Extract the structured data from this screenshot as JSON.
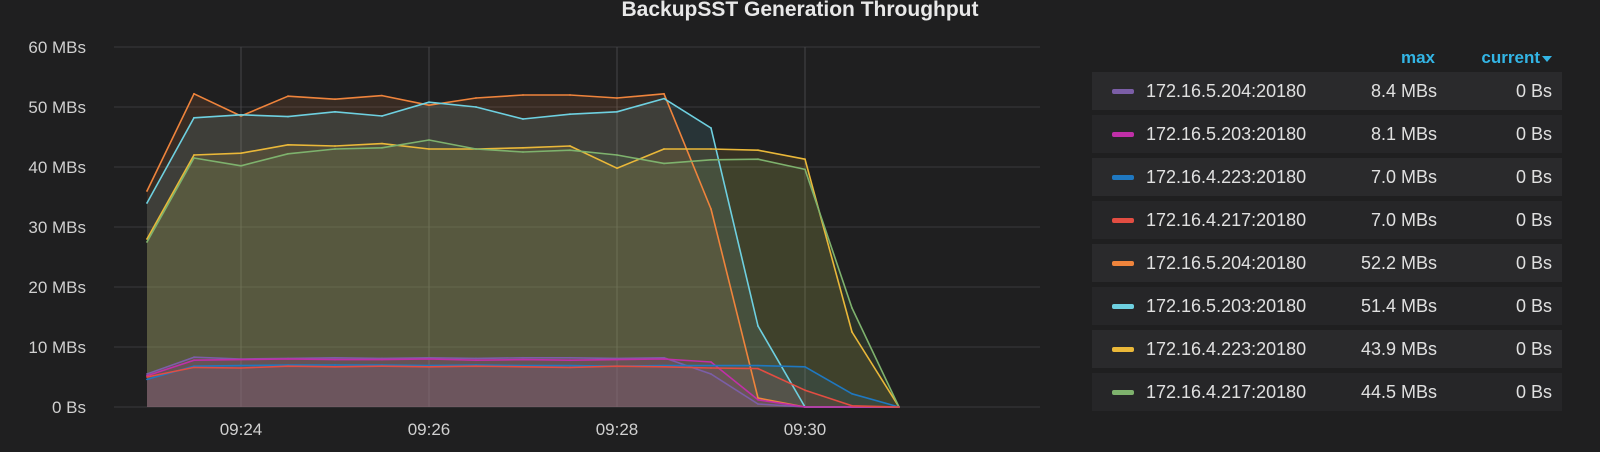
{
  "panel": {
    "title": "BackupSST Generation Throughput"
  },
  "legend": {
    "header": {
      "max_label": "max",
      "current_label": "current"
    },
    "items": [
      {
        "name": "172.16.5.204:20180",
        "max": "8.4 MBs",
        "current": "0 Bs",
        "color": "#7b5ea7"
      },
      {
        "name": "172.16.5.203:20180",
        "max": "8.1 MBs",
        "current": "0 Bs",
        "color": "#c02fa8"
      },
      {
        "name": "172.16.4.223:20180",
        "max": "7.0 MBs",
        "current": "0 Bs",
        "color": "#1f78c1"
      },
      {
        "name": "172.16.4.217:20180",
        "max": "7.0 MBs",
        "current": "0 Bs",
        "color": "#e24d42"
      },
      {
        "name": "172.16.5.204:20180",
        "max": "52.2 MBs",
        "current": "0 Bs",
        "color": "#ef843c"
      },
      {
        "name": "172.16.5.203:20180",
        "max": "51.4 MBs",
        "current": "0 Bs",
        "color": "#6ed0e0"
      },
      {
        "name": "172.16.4.223:20180",
        "max": "43.9 MBs",
        "current": "0 Bs",
        "color": "#eab839"
      },
      {
        "name": "172.16.4.217:20180",
        "max": "44.5 MBs",
        "current": "0 Bs",
        "color": "#7eb26d"
      }
    ]
  },
  "chart_data": {
    "type": "area",
    "title": "BackupSST Generation Throughput",
    "xlabel": "",
    "ylabel": "",
    "x_ticks": [
      "09:24",
      "09:26",
      "09:28",
      "09:30"
    ],
    "x_tick_minutes": [
      24,
      26,
      28,
      30
    ],
    "xlim_minutes": [
      22.5,
      32.5
    ],
    "y_ticks": [
      "0 Bs",
      "10 MBs",
      "20 MBs",
      "30 MBs",
      "40 MBs",
      "50 MBs",
      "60 MBs"
    ],
    "ylim": [
      0,
      60
    ],
    "grid": true,
    "legend_position": "right",
    "x_minutes": [
      23.0,
      23.5,
      24.0,
      24.5,
      25.0,
      25.5,
      26.0,
      26.5,
      27.0,
      27.5,
      28.0,
      28.5,
      29.0,
      29.5,
      30.0,
      30.5,
      31.0
    ],
    "series": [
      {
        "name": "172.16.5.204:20180",
        "color": "#7b5ea7",
        "values": [
          5.5,
          8.3,
          8.0,
          8.1,
          8.2,
          8.1,
          8.2,
          8.1,
          8.2,
          8.2,
          8.1,
          8.2,
          5.5,
          0.5,
          0.0,
          0.0,
          0.0
        ]
      },
      {
        "name": "172.16.5.203:20180",
        "color": "#c02fa8",
        "values": [
          5.2,
          7.8,
          7.9,
          8.0,
          7.9,
          7.9,
          8.0,
          7.8,
          7.9,
          7.8,
          7.9,
          8.0,
          7.5,
          1.2,
          0.0,
          0.0,
          0.0
        ]
      },
      {
        "name": "172.16.4.223:20180",
        "color": "#1f78c1",
        "values": [
          4.6,
          6.8,
          6.9,
          7.0,
          7.0,
          7.0,
          6.9,
          7.0,
          6.9,
          6.9,
          6.8,
          6.9,
          6.9,
          6.9,
          6.7,
          2.2,
          0.0
        ]
      },
      {
        "name": "172.16.4.217:20180",
        "color": "#e24d42",
        "values": [
          5.0,
          6.6,
          6.5,
          6.8,
          6.7,
          6.8,
          6.7,
          6.8,
          6.7,
          6.6,
          6.8,
          6.7,
          6.5,
          6.4,
          2.8,
          0.2,
          0.0
        ]
      },
      {
        "name": "172.16.5.204:20180",
        "color": "#ef843c",
        "values": [
          36.0,
          52.2,
          48.5,
          51.8,
          51.3,
          51.9,
          50.3,
          51.5,
          52.0,
          52.0,
          51.5,
          52.2,
          33.0,
          1.5,
          0.0,
          0.0,
          0.0
        ]
      },
      {
        "name": "172.16.5.203:20180",
        "color": "#6ed0e0",
        "values": [
          34.0,
          48.2,
          48.7,
          48.4,
          49.2,
          48.5,
          50.8,
          50.0,
          48.0,
          48.8,
          49.2,
          51.4,
          46.5,
          13.5,
          0.0,
          0.0,
          0.0
        ]
      },
      {
        "name": "172.16.4.223:20180",
        "color": "#eab839",
        "values": [
          28.0,
          42.0,
          42.3,
          43.7,
          43.5,
          43.9,
          43.0,
          43.0,
          43.2,
          43.5,
          39.8,
          43.0,
          43.0,
          42.8,
          41.3,
          12.5,
          0.0
        ]
      },
      {
        "name": "172.16.4.217:20180",
        "color": "#7eb26d",
        "values": [
          27.5,
          41.5,
          40.2,
          42.2,
          43.0,
          43.2,
          44.5,
          43.0,
          42.5,
          42.8,
          42.0,
          40.6,
          41.2,
          41.3,
          39.6,
          16.5,
          0.0
        ]
      }
    ]
  }
}
